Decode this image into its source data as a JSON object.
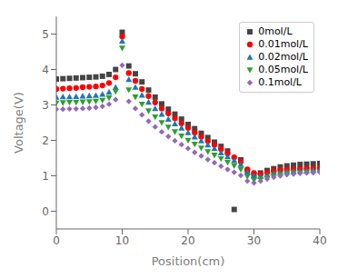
{
  "chart_data": {
    "type": "scatter",
    "xlabel": "Position(cm)",
    "ylabel": "Voltage(V)",
    "xlim": [
      0,
      40
    ],
    "ylim": [
      -0.5,
      5.5
    ],
    "xticks": [
      0,
      10,
      20,
      30,
      40
    ],
    "yticks": [
      0,
      1,
      2,
      3,
      4,
      5
    ],
    "grid": false,
    "legend": "upper right",
    "x": [
      0,
      1,
      2,
      3,
      4,
      5,
      6,
      7,
      8,
      9,
      10,
      11,
      12,
      13,
      14,
      15,
      16,
      17,
      18,
      19,
      20,
      21,
      22,
      23,
      24,
      25,
      26,
      27,
      28,
      29,
      30,
      31,
      32,
      33,
      34,
      35,
      36,
      37,
      38,
      39,
      40
    ],
    "series": [
      {
        "name": "0mol/L",
        "color": "#444444",
        "marker": "square",
        "values": [
          3.73,
          3.74,
          3.75,
          3.76,
          3.77,
          3.78,
          3.79,
          3.81,
          3.86,
          4.0,
          5.05,
          4.1,
          3.88,
          3.65,
          3.42,
          3.22,
          3.03,
          2.88,
          2.74,
          2.6,
          2.45,
          2.33,
          2.2,
          2.08,
          1.95,
          1.83,
          1.7,
          0.05,
          1.45,
          1.15,
          1.02,
          1.08,
          1.15,
          1.2,
          1.25,
          1.28,
          1.3,
          1.32,
          1.33,
          1.34,
          1.35
        ]
      },
      {
        "name": "0.01mol/L",
        "color": "#ff0000",
        "marker": "circle",
        "values": [
          3.45,
          3.46,
          3.47,
          3.48,
          3.5,
          3.51,
          3.52,
          3.55,
          3.62,
          3.78,
          4.93,
          3.9,
          3.68,
          3.45,
          3.25,
          3.07,
          2.9,
          2.76,
          2.62,
          2.48,
          2.35,
          2.22,
          2.1,
          1.98,
          1.87,
          1.75,
          1.63,
          1.52,
          1.4,
          1.18,
          1.08,
          1.05,
          1.09,
          1.13,
          1.16,
          1.18,
          1.19,
          1.2,
          1.21,
          1.22,
          1.22
        ]
      },
      {
        "name": "0.02mol/L",
        "color": "#1f77b4",
        "marker": "triangle",
        "values": [
          3.22,
          3.23,
          3.23,
          3.24,
          3.25,
          3.26,
          3.27,
          3.3,
          3.36,
          3.5,
          4.8,
          3.72,
          3.5,
          3.28,
          3.08,
          2.9,
          2.74,
          2.6,
          2.47,
          2.35,
          2.22,
          2.1,
          1.99,
          1.87,
          1.77,
          1.65,
          1.54,
          1.43,
          1.32,
          1.1,
          1.0,
          0.98,
          1.02,
          1.07,
          1.1,
          1.12,
          1.13,
          1.14,
          1.15,
          1.16,
          1.16
        ]
      },
      {
        "name": "0.05mol/L",
        "color": "#2ca02c",
        "marker": "triangle-down",
        "values": [
          3.05,
          3.06,
          3.07,
          3.07,
          3.08,
          3.09,
          3.1,
          3.13,
          3.2,
          3.38,
          4.6,
          3.42,
          3.22,
          3.02,
          2.83,
          2.66,
          2.5,
          2.37,
          2.24,
          2.12,
          2.0,
          1.89,
          1.78,
          1.68,
          1.58,
          1.48,
          1.38,
          1.28,
          1.18,
          0.98,
          0.88,
          0.9,
          0.95,
          1.0,
          1.04,
          1.06,
          1.08,
          1.09,
          1.1,
          1.11,
          1.11
        ]
      },
      {
        "name": "0.1mol/L",
        "color": "#9467bd",
        "marker": "diamond",
        "values": [
          2.88,
          2.88,
          2.89,
          2.89,
          2.9,
          2.91,
          2.93,
          2.96,
          3.02,
          3.15,
          4.12,
          3.1,
          2.9,
          2.72,
          2.54,
          2.38,
          2.24,
          2.11,
          1.99,
          1.88,
          1.77,
          1.66,
          1.56,
          1.46,
          1.37,
          1.27,
          1.18,
          1.1,
          1.01,
          0.85,
          0.8,
          0.85,
          0.91,
          0.96,
          1.0,
          1.03,
          1.05,
          1.07,
          1.08,
          1.09,
          1.1
        ]
      }
    ]
  }
}
